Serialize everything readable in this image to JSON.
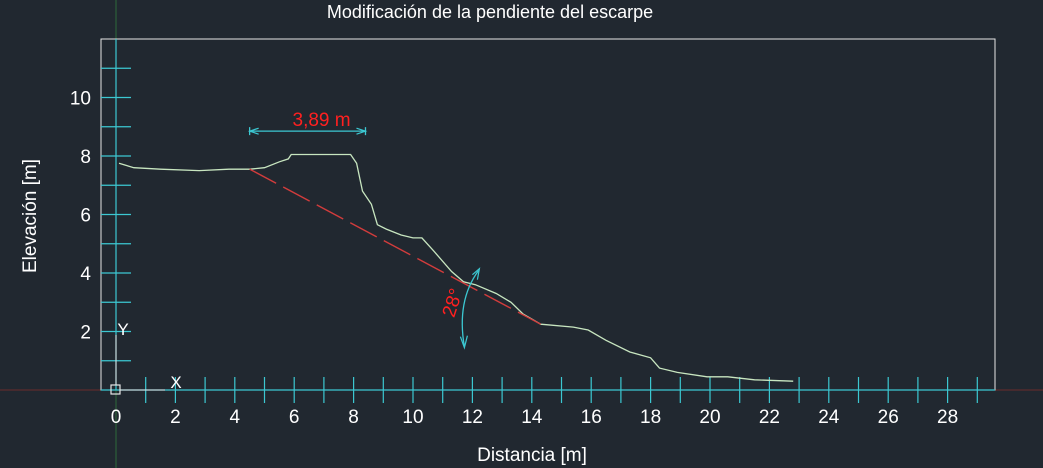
{
  "colors": {
    "background": "#212830",
    "frame": "#e6e6e6",
    "ticks": "#3cc8d2",
    "profile": "#c8e6c0",
    "slope_line": "#d23c3c",
    "dimension_text": "#ff2020",
    "label_text": "#ffffff"
  },
  "chart_data": {
    "type": "line",
    "title": "Modificación de la pendiente del escarpe",
    "xlabel": "Distancia [m]",
    "ylabel": "Elevación [m]",
    "xlim": [
      0,
      30
    ],
    "ylim": [
      0,
      12
    ],
    "grid": false,
    "x_tick_labels": [
      "0",
      "2",
      "4",
      "6",
      "8",
      "10",
      "12",
      "14",
      "16",
      "18",
      "20",
      "22",
      "24",
      "26",
      "28"
    ],
    "x_tick_values": [
      0,
      2,
      4,
      6,
      8,
      10,
      12,
      14,
      16,
      18,
      20,
      22,
      24,
      26,
      28
    ],
    "y_tick_labels": [
      "2",
      "4",
      "6",
      "8",
      "10"
    ],
    "y_tick_values": [
      2,
      4,
      6,
      8,
      10
    ],
    "x_minor_step": 1,
    "y_minor_step": 1,
    "series": [
      {
        "x": [
          0.1,
          0.6,
          1.5,
          2.8,
          3.8,
          4.5,
          5.0,
          5.5,
          5.8,
          5.9,
          7.9,
          8.1,
          8.3,
          8.6,
          8.8,
          9.1,
          9.6,
          10.0,
          10.3,
          10.7,
          11.3,
          11.7,
          12.1,
          12.8,
          13.3,
          13.7,
          14.3,
          15.4,
          15.9,
          16.5,
          17.3,
          18.0,
          18.3,
          18.9,
          19.9,
          20.6,
          21.5,
          22.8
        ],
        "y": [
          7.75,
          7.6,
          7.55,
          7.5,
          7.55,
          7.55,
          7.6,
          7.8,
          7.9,
          8.05,
          8.05,
          7.75,
          6.8,
          6.35,
          5.65,
          5.5,
          5.3,
          5.2,
          5.2,
          4.75,
          4.05,
          3.7,
          3.6,
          3.3,
          3.0,
          2.6,
          2.25,
          2.15,
          2.05,
          1.7,
          1.3,
          1.1,
          0.75,
          0.6,
          0.45,
          0.45,
          0.35,
          0.3
        ]
      },
      {
        "style": "dashed",
        "x": [
          4.5,
          14.3
        ],
        "y": [
          7.55,
          2.25
        ]
      }
    ],
    "annotations": [
      {
        "type": "dimension",
        "text": "3,89 m",
        "x1": 4.5,
        "x2": 8.4,
        "y": 8.85
      },
      {
        "type": "angle",
        "text": "28°",
        "x": 12.0,
        "y": 3.6
      }
    ]
  },
  "ucs_icon": {
    "x_label": "X",
    "y_label": "Y"
  }
}
